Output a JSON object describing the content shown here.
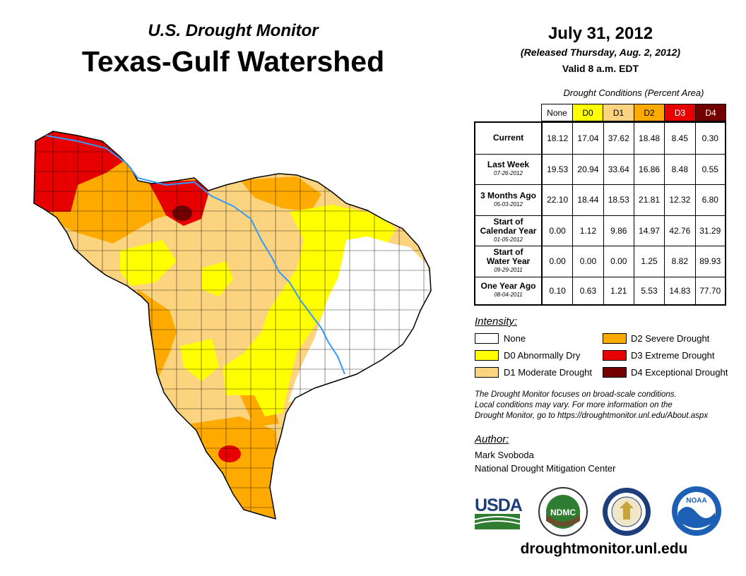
{
  "header": {
    "subtitle": "U.S. Drought Monitor",
    "title": "Texas-Gulf Watershed",
    "date": "July 31, 2012",
    "released": "(Released Thursday, Aug. 2, 2012)",
    "valid": "Valid 8 a.m. EDT"
  },
  "table": {
    "caption": "Drought Conditions (Percent Area)",
    "columns": [
      "None",
      "D0",
      "D1",
      "D2",
      "D3",
      "D4"
    ],
    "rows": [
      {
        "label": "Current",
        "date": "",
        "values": [
          "18.12",
          "17.04",
          "37.62",
          "18.48",
          "8.45",
          "0.30"
        ]
      },
      {
        "label": "Last Week",
        "date": "07-26-2012",
        "values": [
          "19.53",
          "20.94",
          "33.64",
          "16.86",
          "8.48",
          "0.55"
        ]
      },
      {
        "label": "3 Months Ago",
        "date": "05-03-2012",
        "values": [
          "22.10",
          "18.44",
          "18.53",
          "21.81",
          "12.32",
          "6.80"
        ]
      },
      {
        "label": "Start of Calendar Year",
        "date": "01-05-2012",
        "values": [
          "0.00",
          "1.12",
          "9.86",
          "14.97",
          "42.76",
          "31.29"
        ]
      },
      {
        "label": "Start of Water Year",
        "date": "09-29-2011",
        "values": [
          "0.00",
          "0.00",
          "0.00",
          "1.25",
          "8.82",
          "89.93"
        ]
      },
      {
        "label": "One Year Ago",
        "date": "08-04-2011",
        "values": [
          "0.10",
          "0.63",
          "1.21",
          "5.53",
          "14.83",
          "77.70"
        ]
      }
    ]
  },
  "legend": {
    "title": "Intensity:",
    "items": [
      {
        "label": "None",
        "color": "#ffffff"
      },
      {
        "label": "D0 Abnormally Dry",
        "color": "#ffff00"
      },
      {
        "label": "D1 Moderate Drought",
        "color": "#fcd37f"
      },
      {
        "label": "D2 Severe Drought",
        "color": "#ffaa00"
      },
      {
        "label": "D3 Extreme Drought",
        "color": "#e60000"
      },
      {
        "label": "D4 Exceptional Drought",
        "color": "#730000"
      }
    ]
  },
  "note": {
    "line1": "The Drought Monitor focuses on broad-scale conditions.",
    "line2": "Local conditions may vary. For more information on the",
    "line3": "Drought Monitor, go to https://droughtmonitor.unl.edu/About.aspx"
  },
  "author": {
    "title": "Author:",
    "name": "Mark Svoboda",
    "org": "National Drought Mitigation Center"
  },
  "logos": {
    "usda": "USDA",
    "ndmc": "NDMC",
    "noaa": "NOAA"
  },
  "url": "droughtmonitor.unl.edu",
  "colors": {
    "none": "#ffffff",
    "d0": "#ffff00",
    "d1": "#fcd37f",
    "d2": "#ffaa00",
    "d3": "#e60000",
    "d4": "#730000",
    "river": "#3399ff"
  }
}
